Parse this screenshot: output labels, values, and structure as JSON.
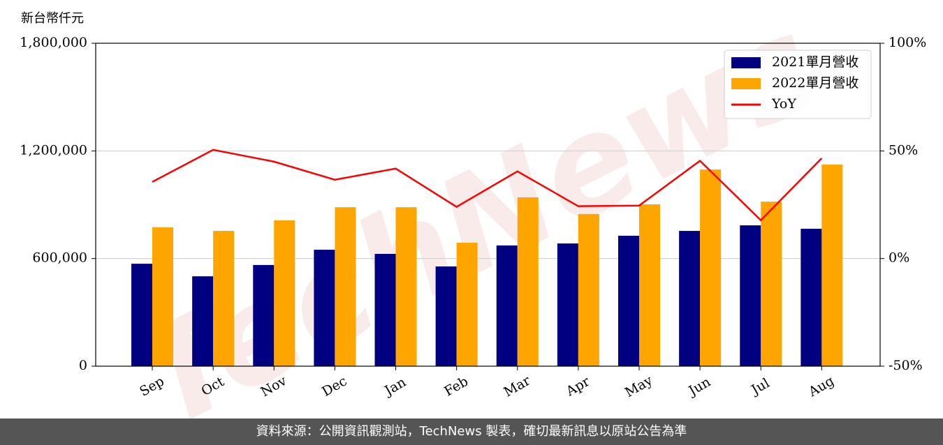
{
  "chart_data": {
    "type": "bar-line",
    "y_label": "新台幣仟元",
    "watermark": "TechNews",
    "categories": [
      "Sep",
      "Oct",
      "Nov",
      "Dec",
      "Jan",
      "Feb",
      "Mar",
      "Apr",
      "May",
      "Jun",
      "Jul",
      "Aug"
    ],
    "series": [
      {
        "name": "2021單月營收",
        "color": "#000080",
        "kind": "bar",
        "values": [
          571000,
          501000,
          564000,
          649000,
          626000,
          556000,
          673000,
          684000,
          727000,
          754000,
          785000,
          766000
        ]
      },
      {
        "name": "2022單月營收",
        "color": "#ffa500",
        "kind": "bar",
        "values": [
          774000,
          754000,
          813000,
          886000,
          886000,
          688000,
          941000,
          848000,
          902000,
          1096000,
          917000,
          1124000
        ]
      },
      {
        "name": "YoY",
        "color": "#ff0000",
        "kind": "line",
        "axis": "y2",
        "values": [
          35.6,
          50.5,
          45,
          36.6,
          41.8,
          24,
          40.5,
          24.3,
          24.6,
          45.4,
          17.8,
          46.6
        ]
      }
    ],
    "ylim": [
      0,
      1800000
    ],
    "yticks": [
      0,
      {
        "value": 600000,
        "label": "600,000"
      },
      {
        "value": 1200000,
        "label": "1,200,000"
      },
      {
        "value": 1800000,
        "label": "1,800,000"
      }
    ],
    "y2lim": [
      -50,
      100
    ],
    "y2ticks": [
      {
        "value": -50,
        "label": "-50%"
      },
      {
        "value": 0,
        "label": "0%"
      },
      {
        "value": 50,
        "label": "50%"
      },
      {
        "value": 100,
        "label": "100%"
      }
    ],
    "grid": true,
    "legend": "upper right"
  },
  "footer": "資料來源：公開資訊觀測站，TechNews 製表，確切最新訊息以原站公告為準"
}
